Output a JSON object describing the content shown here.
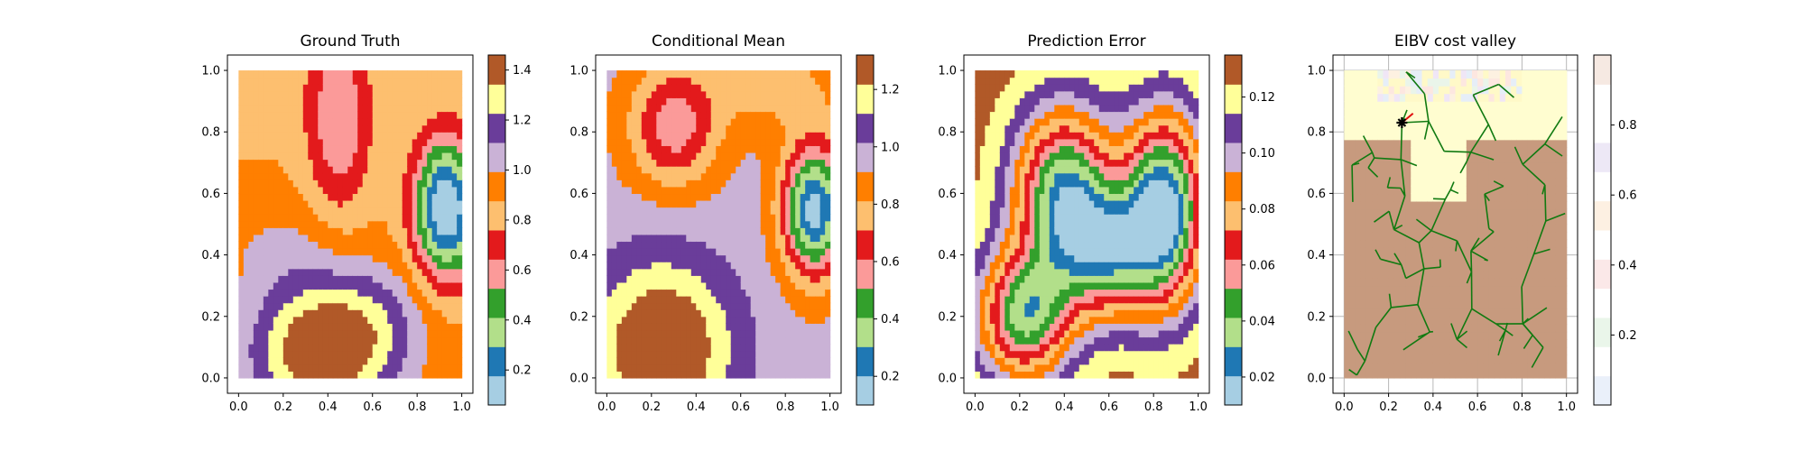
{
  "chart_data": [
    {
      "type": "heatmap",
      "title": "Ground Truth",
      "xlabel": "",
      "ylabel": "",
      "xlim": [
        0.0,
        1.0
      ],
      "ylim": [
        0.0,
        1.0
      ],
      "xticks": [
        "0.0",
        "0.2",
        "0.4",
        "0.6",
        "0.8",
        "1.0"
      ],
      "yticks": [
        "0.0",
        "0.2",
        "0.4",
        "0.6",
        "0.8",
        "1.0"
      ],
      "grid": false,
      "colormap": "Paired",
      "colorbar": {
        "range": [
          0.06,
          1.46
        ],
        "ticks": [
          "0.2",
          "0.4",
          "0.6",
          "0.8",
          "1.0",
          "1.2",
          "1.4"
        ]
      },
      "field": {
        "base": 0.88,
        "terms": [
          {
            "x": 0.93,
            "y": 0.55,
            "sx": 0.1,
            "sy": 0.16,
            "amp": -0.85
          },
          {
            "x": 0.35,
            "y": 0.08,
            "sx": 0.22,
            "sy": 0.16,
            "amp": 0.55
          },
          {
            "x": 0.6,
            "y": 0.18,
            "sx": 0.2,
            "sy": 0.14,
            "amp": 0.22
          },
          {
            "x": 0.45,
            "y": 0.85,
            "sx": 0.1,
            "sy": 0.22,
            "amp": -0.35
          },
          {
            "x": 0.08,
            "y": 0.95,
            "sx": 0.15,
            "sy": 0.12,
            "amp": -0.05
          },
          {
            "x": 0.18,
            "y": 0.42,
            "sx": 0.2,
            "sy": 0.12,
            "amp": 0.12
          }
        ]
      }
    },
    {
      "type": "heatmap",
      "title": "Conditional Mean",
      "xlabel": "",
      "ylabel": "",
      "xlim": [
        0.0,
        1.0
      ],
      "ylim": [
        0.0,
        1.0
      ],
      "xticks": [
        "0.0",
        "0.2",
        "0.4",
        "0.6",
        "0.8",
        "1.0"
      ],
      "yticks": [
        "0.0",
        "0.2",
        "0.4",
        "0.6",
        "0.8",
        "1.0"
      ],
      "grid": false,
      "colormap": "Paired",
      "colorbar": {
        "range": [
          0.1,
          1.32
        ],
        "ticks": [
          "0.2",
          "0.4",
          "0.6",
          "0.8",
          "1.0",
          "1.2"
        ]
      },
      "field": {
        "base": 0.95,
        "terms": [
          {
            "x": 0.93,
            "y": 0.55,
            "sx": 0.1,
            "sy": 0.15,
            "amp": -0.8
          },
          {
            "x": 0.3,
            "y": 0.82,
            "sx": 0.14,
            "sy": 0.14,
            "amp": -0.4
          },
          {
            "x": 0.25,
            "y": 0.1,
            "sx": 0.22,
            "sy": 0.2,
            "amp": 0.42
          },
          {
            "x": 0.75,
            "y": 0.95,
            "sx": 0.22,
            "sy": 0.1,
            "amp": -0.18
          }
        ]
      }
    },
    {
      "type": "heatmap",
      "title": "Prediction Error",
      "xlabel": "",
      "ylabel": "",
      "xlim": [
        0.0,
        1.0
      ],
      "ylim": [
        0.0,
        1.0
      ],
      "xticks": [
        "0.0",
        "0.2",
        "0.4",
        "0.6",
        "0.8",
        "1.0"
      ],
      "yticks": [
        "0.0",
        "0.2",
        "0.4",
        "0.6",
        "0.8",
        "1.0"
      ],
      "grid": false,
      "colormap": "Paired",
      "colorbar": {
        "range": [
          0.01,
          0.135
        ],
        "ticks": [
          "0.02",
          "0.04",
          "0.06",
          "0.08",
          "0.10",
          "0.12"
        ]
      },
      "field": {
        "base": 0.13,
        "terms": [
          {
            "x": 0.85,
            "y": 0.55,
            "sx": 0.13,
            "sy": 0.22,
            "amp": -0.115
          },
          {
            "x": 0.4,
            "y": 0.6,
            "sx": 0.16,
            "sy": 0.2,
            "amp": -0.1
          },
          {
            "x": 0.22,
            "y": 0.2,
            "sx": 0.15,
            "sy": 0.15,
            "amp": -0.09
          },
          {
            "x": 0.6,
            "y": 0.4,
            "sx": 0.15,
            "sy": 0.15,
            "amp": -0.07
          }
        ]
      }
    },
    {
      "type": "scatter",
      "title": "EIBV cost valley",
      "xlabel": "",
      "ylabel": "",
      "xlim": [
        0.0,
        1.0
      ],
      "ylim": [
        0.0,
        1.0
      ],
      "xticks": [
        "0.0",
        "0.2",
        "0.4",
        "0.6",
        "0.8",
        "1.0"
      ],
      "yticks": [
        "0.0",
        "0.2",
        "0.4",
        "0.6",
        "0.8",
        "1.0"
      ],
      "grid": true,
      "colorbar": {
        "range": [
          0.0,
          1.0
        ],
        "ticks": [
          "0.2",
          "0.4",
          "0.6",
          "0.8"
        ]
      },
      "current_location": {
        "x": 0.26,
        "y": 0.83
      },
      "tree_color": "#117a11",
      "path_color": "#e01010",
      "tree_seed": 11,
      "tree_count": 110
    }
  ]
}
